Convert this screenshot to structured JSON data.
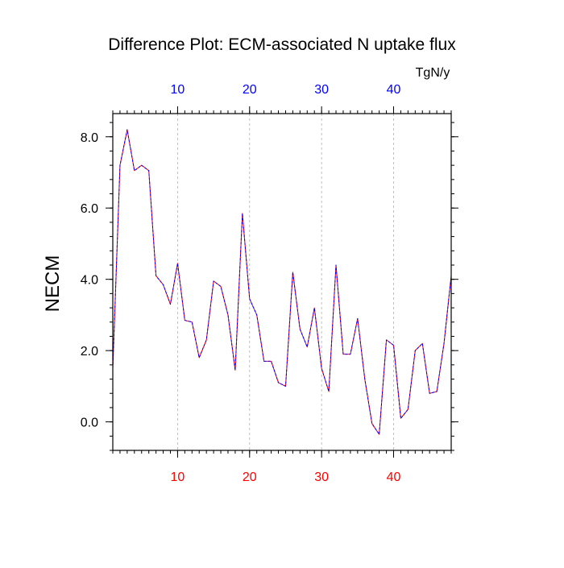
{
  "chart_data": {
    "type": "line",
    "title": "Difference Plot: ECM-associated N uptake flux",
    "units": "TgN/y",
    "ylabel": "NECM",
    "xlim": [
      1,
      48
    ],
    "ylim": [
      -0.8,
      8.65
    ],
    "x_ticks": [
      10,
      20,
      30,
      40
    ],
    "x_tick_labels": [
      "10",
      "20",
      "30",
      "40"
    ],
    "y_ticks": [
      0,
      2,
      4,
      6,
      8
    ],
    "y_tick_labels": [
      "0.0",
      "2.0",
      "4.0",
      "6.0",
      "8.0"
    ],
    "grid": "vertical dashed",
    "colors": {
      "bottom_axis_labels": "#ff0000",
      "top_axis_labels": "#0000ff",
      "line_a": "#ff0000",
      "line_b": "#0000ff"
    },
    "x": [
      1,
      2,
      3,
      4,
      5,
      6,
      7,
      8,
      9,
      10,
      11,
      12,
      13,
      14,
      15,
      16,
      17,
      18,
      19,
      20,
      21,
      22,
      23,
      24,
      25,
      26,
      27,
      28,
      29,
      30,
      31,
      32,
      33,
      34,
      35,
      36,
      37,
      38,
      39,
      40,
      41,
      42,
      43,
      44,
      45,
      46,
      47,
      48
    ],
    "series": [
      {
        "values": [
          1.5,
          7.2,
          8.2,
          7.05,
          7.2,
          7.05,
          4.1,
          3.85,
          3.3,
          4.45,
          2.85,
          2.8,
          1.8,
          2.3,
          3.95,
          3.8,
          3.0,
          1.45,
          5.85,
          3.45,
          3.0,
          1.7,
          1.7,
          1.1,
          1.0,
          4.2,
          2.6,
          2.1,
          3.2,
          1.5,
          0.85,
          4.4,
          1.9,
          1.9,
          2.9,
          1.2,
          -0.05,
          -0.35,
          2.3,
          2.15,
          0.1,
          0.35,
          2.0,
          2.2,
          0.8,
          0.85,
          2.2,
          4.1
        ]
      },
      {
        "values": [
          1.5,
          7.2,
          8.2,
          7.05,
          7.2,
          7.05,
          4.1,
          3.85,
          3.3,
          4.45,
          2.85,
          2.8,
          1.8,
          2.3,
          3.95,
          3.8,
          3.0,
          1.45,
          5.85,
          3.45,
          3.0,
          1.7,
          1.7,
          1.1,
          1.0,
          4.2,
          2.6,
          2.1,
          3.2,
          1.5,
          0.85,
          4.4,
          1.9,
          1.9,
          2.9,
          1.2,
          -0.05,
          -0.35,
          2.3,
          2.15,
          0.1,
          0.35,
          2.0,
          2.2,
          0.8,
          0.85,
          2.2,
          4.1
        ]
      }
    ]
  }
}
